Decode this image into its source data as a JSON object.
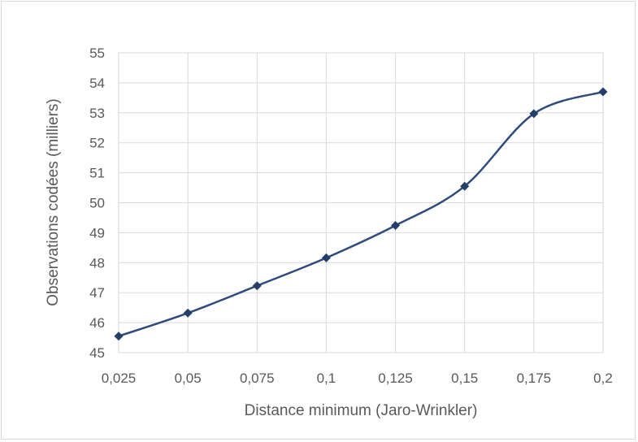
{
  "chart_data": {
    "type": "line",
    "xlabel": "Distance minimum (Jaro-Wrinkler)",
    "ylabel": "Observations codées (milliers)",
    "categories": [
      "0,025",
      "0,05",
      "0,075",
      "0,1",
      "0,125",
      "0,15",
      "0,175",
      "0,2"
    ],
    "series": [
      {
        "values": [
          45.55,
          46.32,
          47.23,
          48.16,
          49.24,
          50.55,
          52.97,
          53.7
        ]
      }
    ],
    "ylim": [
      45,
      55
    ],
    "yticks": [
      "45",
      "46",
      "47",
      "48",
      "49",
      "50",
      "51",
      "52",
      "53",
      "54",
      "55"
    ],
    "grid": true,
    "line_color": "#2f4b7c",
    "grid_color": "#d9d9d9"
  }
}
